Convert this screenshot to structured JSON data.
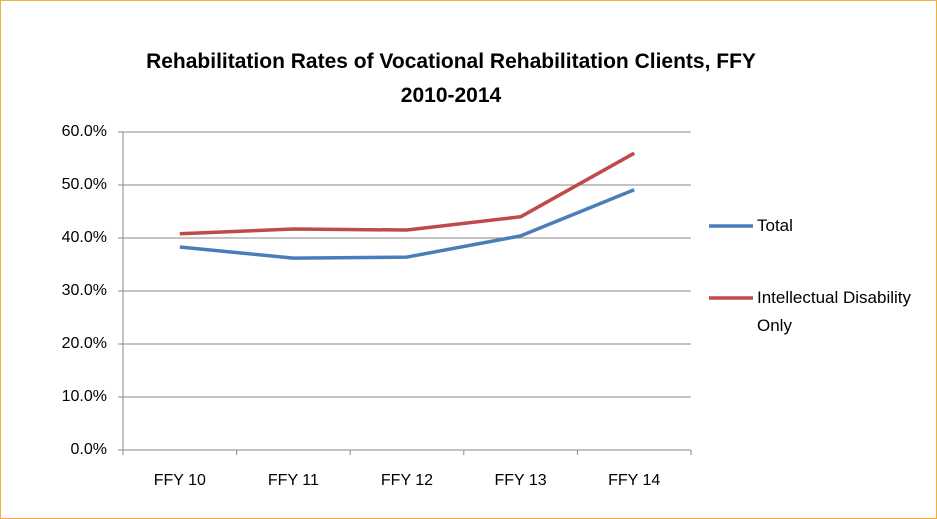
{
  "chart_data": {
    "type": "line",
    "title": "Rehabilitation Rates of Vocational Rehabilitation Clients, FFY 2010-2014",
    "categories": [
      "FFY 10",
      "FFY 11",
      "FFY 12",
      "FFY 13",
      "FFY 14"
    ],
    "series": [
      {
        "name": "Total",
        "color": "#4a7ebb",
        "values": [
          38.3,
          36.2,
          36.4,
          40.4,
          49.1
        ]
      },
      {
        "name": "Intellectual Disability Only",
        "color": "#be4b48",
        "values": [
          40.8,
          41.7,
          41.5,
          44.0,
          56.0
        ]
      }
    ],
    "ylim": [
      0,
      60
    ],
    "yticks": [
      {
        "value": 0,
        "label": "0.0%"
      },
      {
        "value": 10,
        "label": "10.0%"
      },
      {
        "value": 20,
        "label": "20.0%"
      },
      {
        "value": 30,
        "label": "30.0%"
      },
      {
        "value": 40,
        "label": "40.0%"
      },
      {
        "value": 50,
        "label": "50.0%"
      },
      {
        "value": 60,
        "label": "60.0%"
      }
    ],
    "grid": true,
    "legend": "right"
  }
}
